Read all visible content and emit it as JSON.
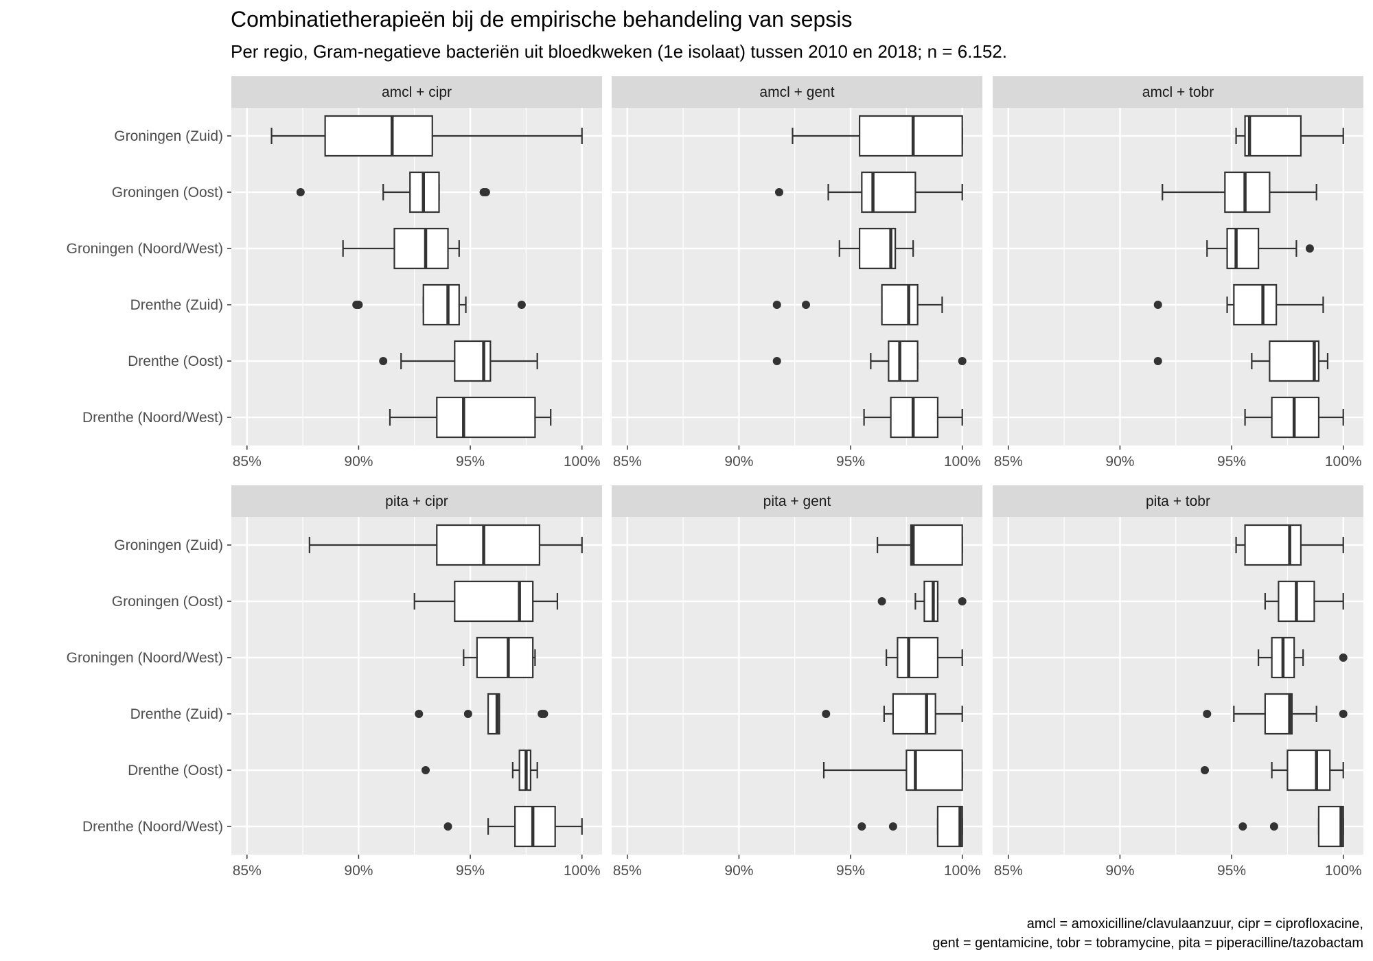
{
  "colors": {
    "panel_background": "#EBEBEB",
    "strip_background": "#D9D9D9",
    "grid": "#FFFFFF",
    "box_line": "#333333",
    "box_fill": "#FFFFFF",
    "text": "#4D4D4D"
  },
  "chart_data": {
    "type": "boxplot",
    "title": "Combinatietherapieën bij de empirische behandeling van sepsis",
    "subtitle": "Per regio, Gram-negatieve bacteriën uit bloedkweken (1e isolaat) tussen 2010 en 2018; n = 6.152.",
    "caption": [
      "amcl = amoxicilline/clavulaanzuur, cipr = ciprofloxacine,",
      "gent = gentamicine, tobr = tobramycine, pita = piperacilline/tazobactam"
    ],
    "orientation": "horizontal",
    "categories": [
      "Groningen (Zuid)",
      "Groningen (Oost)",
      "Groningen (Noord/West)",
      "Drenthe (Zuid)",
      "Drenthe (Oost)",
      "Drenthe (Noord/West)"
    ],
    "xlim": [
      84.3,
      100.9
    ],
    "x_ticks": [
      85,
      90,
      95,
      100
    ],
    "x_tick_labels": [
      "85%",
      "90%",
      "95%",
      "100%"
    ],
    "facet_layout": {
      "rows": 2,
      "cols": 3
    },
    "panels": [
      {
        "label": "amcl + cipr",
        "boxes": [
          {
            "category": "Groningen (Zuid)",
            "whisker_low": 86.1,
            "q1": 88.5,
            "median": 91.5,
            "q3": 93.3,
            "whisker_high": 100,
            "outliers": []
          },
          {
            "category": "Groningen (Oost)",
            "whisker_low": 91.1,
            "q1": 92.3,
            "median": 92.9,
            "q3": 93.6,
            "whisker_high": 93.6,
            "outliers": [
              87.4,
              95.6,
              95.7
            ]
          },
          {
            "category": "Groningen (Noord/West)",
            "whisker_low": 89.3,
            "q1": 91.6,
            "median": 93.0,
            "q3": 94.0,
            "whisker_high": 94.5,
            "outliers": []
          },
          {
            "category": "Drenthe (Zuid)",
            "whisker_low": 92.9,
            "q1": 92.9,
            "median": 94.0,
            "q3": 94.5,
            "whisker_high": 94.8,
            "outliers": [
              89.9,
              90.0,
              97.3
            ]
          },
          {
            "category": "Drenthe (Oost)",
            "whisker_low": 91.9,
            "q1": 94.3,
            "median": 95.6,
            "q3": 95.9,
            "whisker_high": 98.0,
            "outliers": [
              91.1
            ]
          },
          {
            "category": "Drenthe (Noord/West)",
            "whisker_low": 91.4,
            "q1": 93.5,
            "median": 94.7,
            "q3": 97.9,
            "whisker_high": 98.6,
            "outliers": []
          }
        ]
      },
      {
        "label": "amcl + gent",
        "boxes": [
          {
            "category": "Groningen (Zuid)",
            "whisker_low": 92.4,
            "q1": 95.4,
            "median": 97.8,
            "q3": 100,
            "whisker_high": 100,
            "outliers": []
          },
          {
            "category": "Groningen (Oost)",
            "whisker_low": 94.0,
            "q1": 95.5,
            "median": 96.0,
            "q3": 97.9,
            "whisker_high": 100,
            "outliers": [
              91.8
            ]
          },
          {
            "category": "Groningen (Noord/West)",
            "whisker_low": 94.5,
            "q1": 95.4,
            "median": 96.8,
            "q3": 97.0,
            "whisker_high": 97.8,
            "outliers": []
          },
          {
            "category": "Drenthe (Zuid)",
            "whisker_low": 96.4,
            "q1": 96.4,
            "median": 97.6,
            "q3": 98.0,
            "whisker_high": 99.1,
            "outliers": [
              91.7,
              93.0
            ]
          },
          {
            "category": "Drenthe (Oost)",
            "whisker_low": 95.9,
            "q1": 96.7,
            "median": 97.2,
            "q3": 98.0,
            "whisker_high": 98.0,
            "outliers": [
              91.7,
              100
            ]
          },
          {
            "category": "Drenthe (Noord/West)",
            "whisker_low": 95.6,
            "q1": 96.8,
            "median": 97.8,
            "q3": 98.9,
            "whisker_high": 100,
            "outliers": []
          }
        ]
      },
      {
        "label": "amcl + tobr",
        "boxes": [
          {
            "category": "Groningen (Zuid)",
            "whisker_low": 95.2,
            "q1": 95.6,
            "median": 95.8,
            "q3": 98.1,
            "whisker_high": 100,
            "outliers": []
          },
          {
            "category": "Groningen (Oost)",
            "whisker_low": 91.9,
            "q1": 94.7,
            "median": 95.6,
            "q3": 96.7,
            "whisker_high": 98.8,
            "outliers": []
          },
          {
            "category": "Groningen (Noord/West)",
            "whisker_low": 93.9,
            "q1": 94.8,
            "median": 95.2,
            "q3": 96.2,
            "whisker_high": 97.9,
            "outliers": [
              98.5
            ]
          },
          {
            "category": "Drenthe (Zuid)",
            "whisker_low": 94.8,
            "q1": 95.1,
            "median": 96.4,
            "q3": 97.0,
            "whisker_high": 99.1,
            "outliers": [
              91.7
            ]
          },
          {
            "category": "Drenthe (Oost)",
            "whisker_low": 95.9,
            "q1": 96.7,
            "median": 98.7,
            "q3": 98.9,
            "whisker_high": 99.3,
            "outliers": [
              91.7
            ]
          },
          {
            "category": "Drenthe (Noord/West)",
            "whisker_low": 95.6,
            "q1": 96.8,
            "median": 97.8,
            "q3": 98.9,
            "whisker_high": 100,
            "outliers": []
          }
        ]
      },
      {
        "label": "pita + cipr",
        "boxes": [
          {
            "category": "Groningen (Zuid)",
            "whisker_low": 87.8,
            "q1": 93.5,
            "median": 95.6,
            "q3": 98.1,
            "whisker_high": 100,
            "outliers": []
          },
          {
            "category": "Groningen (Oost)",
            "whisker_low": 92.5,
            "q1": 94.3,
            "median": 97.2,
            "q3": 97.8,
            "whisker_high": 98.9,
            "outliers": []
          },
          {
            "category": "Groningen (Noord/West)",
            "whisker_low": 94.7,
            "q1": 95.3,
            "median": 96.7,
            "q3": 97.8,
            "whisker_high": 97.9,
            "outliers": []
          },
          {
            "category": "Drenthe (Zuid)",
            "whisker_low": 95.8,
            "q1": 95.8,
            "median": 96.2,
            "q3": 96.3,
            "whisker_high": 96.3,
            "outliers": [
              92.7,
              94.9,
              98.2,
              98.3
            ]
          },
          {
            "category": "Drenthe (Oost)",
            "whisker_low": 96.9,
            "q1": 97.2,
            "median": 97.5,
            "q3": 97.7,
            "whisker_high": 98.0,
            "outliers": [
              93.0
            ]
          },
          {
            "category": "Drenthe (Noord/West)",
            "whisker_low": 95.8,
            "q1": 97.0,
            "median": 97.8,
            "q3": 98.8,
            "whisker_high": 100,
            "outliers": [
              94.0
            ]
          }
        ]
      },
      {
        "label": "pita + gent",
        "boxes": [
          {
            "category": "Groningen (Zuid)",
            "whisker_low": 96.2,
            "q1": 97.7,
            "median": 97.8,
            "q3": 100,
            "whisker_high": 100,
            "outliers": []
          },
          {
            "category": "Groningen (Oost)",
            "whisker_low": 97.9,
            "q1": 98.3,
            "median": 98.7,
            "q3": 98.9,
            "whisker_high": 98.9,
            "outliers": [
              96.4,
              100
            ]
          },
          {
            "category": "Groningen (Noord/West)",
            "whisker_low": 96.6,
            "q1": 97.1,
            "median": 97.6,
            "q3": 98.9,
            "whisker_high": 100,
            "outliers": []
          },
          {
            "category": "Drenthe (Zuid)",
            "whisker_low": 96.5,
            "q1": 96.9,
            "median": 98.4,
            "q3": 98.8,
            "whisker_high": 100,
            "outliers": [
              93.9
            ]
          },
          {
            "category": "Drenthe (Oost)",
            "whisker_low": 93.8,
            "q1": 97.5,
            "median": 97.9,
            "q3": 100,
            "whisker_high": 100,
            "outliers": []
          },
          {
            "category": "Drenthe (Noord/West)",
            "whisker_low": 98.9,
            "q1": 98.9,
            "median": 99.9,
            "q3": 100,
            "whisker_high": 100,
            "outliers": [
              95.5,
              96.9
            ]
          }
        ]
      },
      {
        "label": "pita + tobr",
        "boxes": [
          {
            "category": "Groningen (Zuid)",
            "whisker_low": 95.2,
            "q1": 95.6,
            "median": 97.6,
            "q3": 98.1,
            "whisker_high": 100,
            "outliers": []
          },
          {
            "category": "Groningen (Oost)",
            "whisker_low": 96.5,
            "q1": 97.1,
            "median": 97.9,
            "q3": 98.7,
            "whisker_high": 100,
            "outliers": []
          },
          {
            "category": "Groningen (Noord/West)",
            "whisker_low": 96.2,
            "q1": 96.8,
            "median": 97.3,
            "q3": 97.8,
            "whisker_high": 98.2,
            "outliers": [
              100
            ]
          },
          {
            "category": "Drenthe (Zuid)",
            "whisker_low": 95.1,
            "q1": 96.5,
            "median": 97.6,
            "q3": 97.7,
            "whisker_high": 98.8,
            "outliers": [
              93.9,
              100
            ]
          },
          {
            "category": "Drenthe (Oost)",
            "whisker_low": 96.8,
            "q1": 97.5,
            "median": 98.8,
            "q3": 99.4,
            "whisker_high": 100,
            "outliers": [
              93.8
            ]
          },
          {
            "category": "Drenthe (Noord/West)",
            "whisker_low": 98.9,
            "q1": 98.9,
            "median": 99.9,
            "q3": 100,
            "whisker_high": 100,
            "outliers": [
              95.5,
              96.9
            ]
          }
        ]
      }
    ]
  }
}
